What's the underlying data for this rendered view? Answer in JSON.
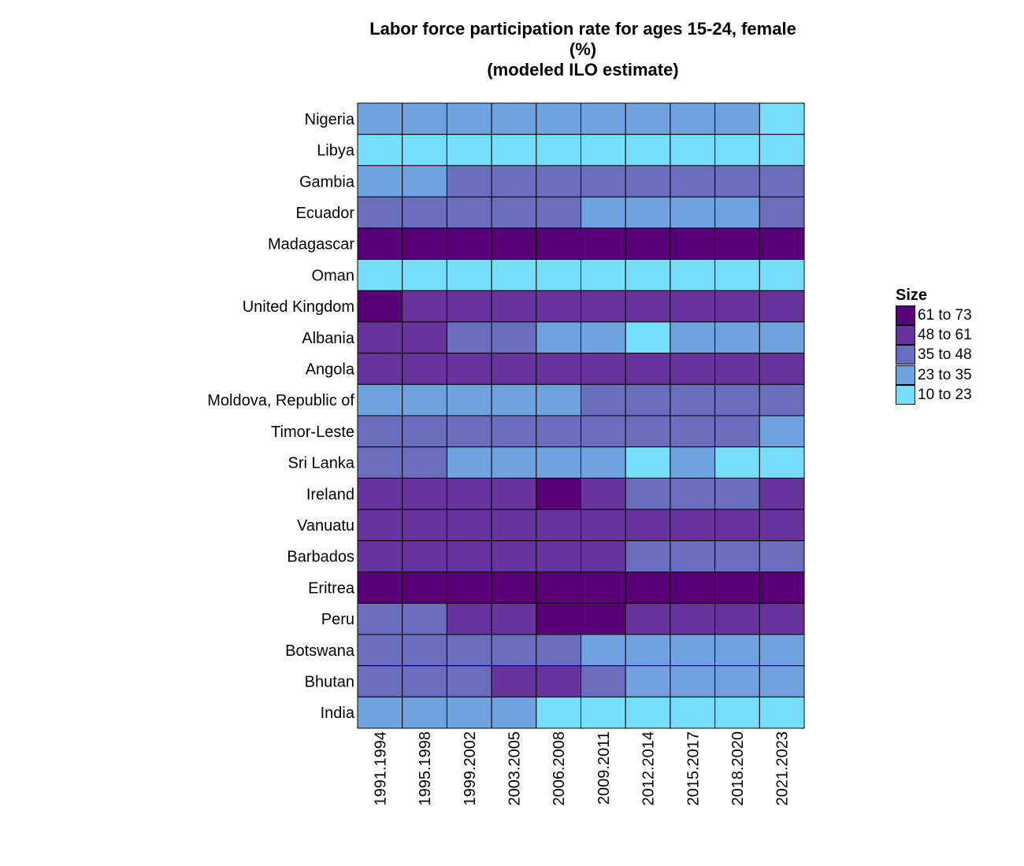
{
  "chart_data": {
    "type": "heatmap",
    "title": [
      "Labor force participation rate for ages 15-24, female",
      "(%)",
      "(modeled ILO estimate)"
    ],
    "legend_title": "Size",
    "legend_placement": "right",
    "bins": [
      {
        "label": "61 to 73",
        "color": "#5a0077"
      },
      {
        "label": "48 to 61",
        "color": "#66349a"
      },
      {
        "label": "35 to 48",
        "color": "#6a6cbe"
      },
      {
        "label": "23 to 35",
        "color": "#6fa3df"
      },
      {
        "label": "10 to 23",
        "color": "#76ddfd"
      }
    ],
    "x": [
      "1991.1994",
      "1995.1998",
      "1999.2002",
      "2003.2005",
      "2006.2008",
      "2009.2011",
      "2012.2014",
      "2015.2017",
      "2018.2020",
      "2021.2023"
    ],
    "y": [
      "Nigeria",
      "Libya",
      "Gambia",
      "Ecuador",
      "Madagascar",
      "Oman",
      "United Kingdom",
      "Albania",
      "Angola",
      "Moldova, Republic of",
      "Timor-Leste",
      "Sri Lanka",
      "Ireland",
      "Vanuatu",
      "Barbados",
      "Eritrea",
      "Peru",
      "Botswana",
      "Bhutan",
      "India"
    ],
    "bin_matrix": [
      [
        3,
        3,
        3,
        3,
        3,
        3,
        3,
        3,
        3,
        4
      ],
      [
        4,
        4,
        4,
        4,
        4,
        4,
        4,
        4,
        4,
        4
      ],
      [
        3,
        3,
        2,
        2,
        2,
        2,
        2,
        2,
        2,
        2
      ],
      [
        2,
        2,
        2,
        2,
        2,
        3,
        3,
        3,
        3,
        2
      ],
      [
        0,
        0,
        0,
        0,
        0,
        0,
        0,
        0,
        0,
        0
      ],
      [
        4,
        4,
        4,
        4,
        4,
        4,
        4,
        4,
        4,
        4
      ],
      [
        0,
        1,
        1,
        1,
        1,
        1,
        1,
        1,
        1,
        1
      ],
      [
        1,
        1,
        2,
        2,
        3,
        3,
        4,
        3,
        3,
        3
      ],
      [
        1,
        1,
        1,
        1,
        1,
        1,
        1,
        1,
        1,
        1
      ],
      [
        3,
        3,
        3,
        3,
        3,
        2,
        2,
        2,
        2,
        2
      ],
      [
        2,
        2,
        2,
        2,
        2,
        2,
        2,
        2,
        2,
        3
      ],
      [
        2,
        2,
        3,
        3,
        3,
        3,
        4,
        3,
        4,
        4
      ],
      [
        1,
        1,
        1,
        1,
        0,
        1,
        2,
        2,
        2,
        1
      ],
      [
        1,
        1,
        1,
        1,
        1,
        1,
        1,
        1,
        1,
        1
      ],
      [
        1,
        1,
        1,
        1,
        1,
        1,
        2,
        2,
        2,
        2
      ],
      [
        0,
        0,
        0,
        0,
        0,
        0,
        0,
        0,
        0,
        0
      ],
      [
        2,
        2,
        1,
        1,
        0,
        0,
        1,
        1,
        1,
        1
      ],
      [
        2,
        2,
        2,
        2,
        2,
        3,
        3,
        3,
        3,
        3
      ],
      [
        2,
        2,
        2,
        1,
        1,
        2,
        3,
        3,
        3,
        3
      ],
      [
        3,
        3,
        3,
        3,
        4,
        4,
        4,
        4,
        4,
        4
      ]
    ],
    "grid": false
  }
}
